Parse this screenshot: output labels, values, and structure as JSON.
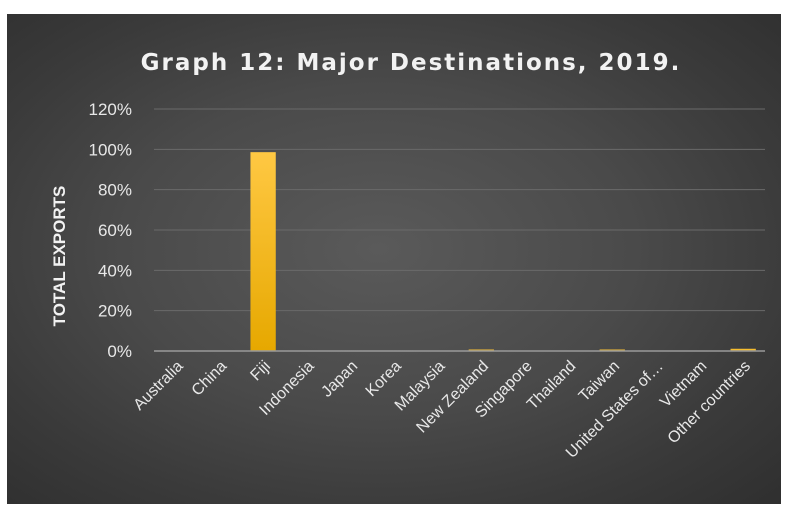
{
  "chart_data": {
    "type": "bar",
    "title": "Graph 12: Major Destinations, 2019.",
    "ylabel": "TOTAL EXPORTS",
    "xlabel": "",
    "ylim": [
      0,
      120
    ],
    "yticks": [
      "0%",
      "20%",
      "40%",
      "60%",
      "80%",
      "100%",
      "120%"
    ],
    "categories": [
      "Australia",
      "China",
      "Fiji",
      "Indonesia",
      "Japan",
      "Korea",
      "Malaysia",
      "New Zealand",
      "Singapore",
      "Thailand",
      "Taiwan",
      "United States of…",
      "Vietnam",
      "Other countries"
    ],
    "values": [
      0,
      0,
      98.6,
      0,
      0,
      0,
      0,
      0.15,
      0,
      0,
      0.1,
      0,
      0,
      1.1
    ],
    "grid": true,
    "legend": "none",
    "bar_color": "#f5b800"
  }
}
